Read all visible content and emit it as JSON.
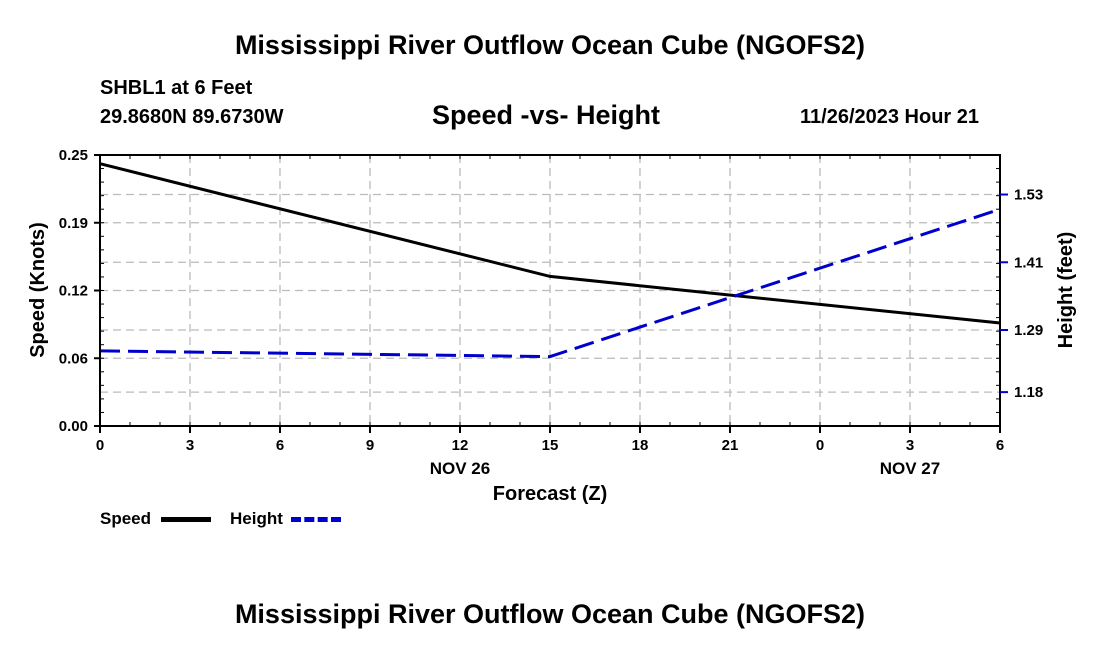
{
  "header": {
    "title": "Mississippi River Outflow Ocean Cube (NGOFS2)",
    "station": "SHBL1 at 6 Feet",
    "coords": "29.8680N  89.6730W",
    "subtitle": "Speed -vs- Height",
    "datetime": "11/26/2023 Hour 21"
  },
  "footer": {
    "title": "Mississippi River Outflow Ocean Cube (NGOFS2)"
  },
  "legend": {
    "speed": "Speed",
    "height": "Height"
  },
  "colors": {
    "speed": "#000000",
    "height": "#0000cc",
    "grid": "#bbbbbb"
  },
  "chart_data": {
    "type": "line",
    "title": "Speed -vs- Height",
    "xlabel": "Forecast (Z)",
    "ylabel": "Speed (Knots)",
    "y2label": "Height (feet)",
    "x_hours_range": [
      0,
      30
    ],
    "x_ticks": [
      {
        "hour": 0,
        "label": "0"
      },
      {
        "hour": 3,
        "label": "3"
      },
      {
        "hour": 6,
        "label": "6"
      },
      {
        "hour": 9,
        "label": "9"
      },
      {
        "hour": 12,
        "label": "12"
      },
      {
        "hour": 15,
        "label": "15"
      },
      {
        "hour": 18,
        "label": "18"
      },
      {
        "hour": 21,
        "label": "21"
      },
      {
        "hour": 24,
        "label": "0"
      },
      {
        "hour": 27,
        "label": "3"
      },
      {
        "hour": 30,
        "label": "6"
      }
    ],
    "date_labels": [
      {
        "hour": 12,
        "label": "NOV 26"
      },
      {
        "hour": 27,
        "label": "NOV 27"
      }
    ],
    "ylim": [
      0,
      0.25
    ],
    "y_ticks": [
      "0.00",
      "0.06",
      "0.12",
      "0.19",
      "0.25"
    ],
    "y2lim": [
      1.12,
      1.6
    ],
    "y2_ticks": [
      "1.18",
      "1.29",
      "1.41",
      "1.53"
    ],
    "legend_position": "bottom-left",
    "series": [
      {
        "name": "Speed",
        "axis": "left",
        "style": "solid",
        "x": [
          0,
          15,
          30
        ],
        "values": [
          0.242,
          0.138,
          0.095
        ]
      },
      {
        "name": "Height",
        "axis": "right",
        "style": "dashed",
        "x": [
          0,
          15,
          30
        ],
        "values": [
          1.253,
          1.243,
          1.504
        ]
      }
    ]
  }
}
